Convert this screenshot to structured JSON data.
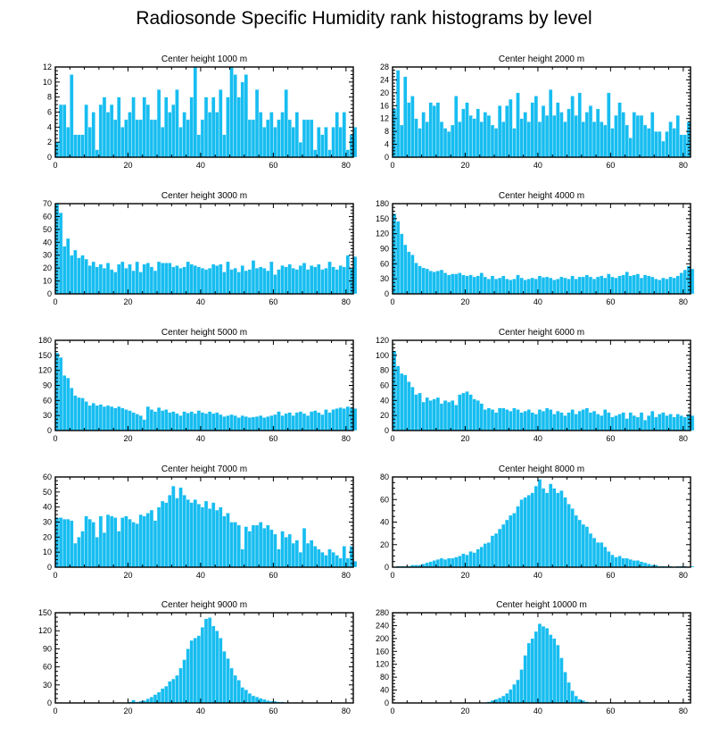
{
  "title": "Radiosonde Specific Humidity rank histograms by level",
  "colors": {
    "bar": "#17bdf0",
    "bar_edge": "#e9f8ff",
    "axis": "#000000"
  },
  "chart_data": [
    {
      "type": "bar",
      "title": "Center height 1000 m",
      "xlabel": "",
      "ylabel": "",
      "xlim": [
        0,
        82
      ],
      "xticks": [
        0,
        20,
        40,
        60,
        80
      ],
      "ylim": [
        0,
        12
      ],
      "yticks": [
        0,
        2,
        4,
        6,
        8,
        10,
        12
      ],
      "x_start": 0,
      "values": [
        2,
        7,
        7,
        4,
        11,
        3,
        3,
        3,
        7,
        4,
        6,
        1,
        7,
        8,
        6,
        7,
        5,
        8,
        4,
        5,
        6,
        8,
        5,
        5,
        8,
        7,
        5,
        5,
        9,
        4,
        8,
        6,
        7,
        9,
        4,
        6,
        5,
        8,
        12,
        3,
        5,
        8,
        6,
        8,
        6,
        9,
        3,
        8,
        12,
        11,
        8,
        10,
        11,
        5,
        5,
        9,
        6,
        4,
        5,
        6,
        4,
        5,
        6,
        9,
        5,
        4,
        6,
        2,
        5,
        5,
        5,
        1,
        4,
        3,
        4,
        1,
        4,
        6,
        4,
        6,
        1,
        3,
        4
      ]
    },
    {
      "type": "bar",
      "title": "Center height 2000 m",
      "xlabel": "",
      "ylabel": "",
      "xlim": [
        0,
        82
      ],
      "xticks": [
        0,
        20,
        40,
        60,
        80
      ],
      "ylim": [
        0,
        28
      ],
      "yticks": [
        0,
        4,
        8,
        12,
        16,
        20,
        24,
        28
      ],
      "x_start": 0,
      "values": [
        15,
        27,
        10,
        25,
        17,
        19,
        12,
        9,
        14,
        11,
        17,
        16,
        17,
        11,
        9,
        8,
        10,
        19,
        11,
        15,
        17,
        13,
        12,
        15,
        11,
        14,
        13,
        10,
        9,
        16,
        11,
        16,
        18,
        9,
        20,
        12,
        14,
        11,
        17,
        19,
        11,
        16,
        13,
        21,
        13,
        17,
        14,
        11,
        15,
        19,
        13,
        20,
        11,
        14,
        16,
        11,
        15,
        11,
        10,
        20,
        9,
        13,
        17,
        14,
        10,
        6,
        14,
        13,
        13,
        10,
        9,
        14,
        8,
        8,
        5,
        8,
        11,
        9,
        13,
        7,
        7,
        11
      ]
    },
    {
      "type": "bar",
      "title": "Center height 3000 m",
      "xlabel": "",
      "ylabel": "",
      "xlim": [
        0,
        82
      ],
      "xticks": [
        0,
        20,
        40,
        60,
        80
      ],
      "ylim": [
        0,
        70
      ],
      "yticks": [
        0,
        10,
        20,
        30,
        40,
        50,
        60,
        70
      ],
      "x_start": 0,
      "values": [
        70,
        63,
        37,
        43,
        30,
        34,
        28,
        30,
        27,
        22,
        25,
        21,
        23,
        20,
        24,
        19,
        17,
        23,
        25,
        20,
        23,
        18,
        25,
        17,
        23,
        24,
        21,
        18,
        25,
        24,
        24,
        24,
        21,
        22,
        20,
        21,
        25,
        23,
        22,
        21,
        20,
        19,
        20,
        23,
        22,
        23,
        17,
        25,
        19,
        20,
        17,
        22,
        18,
        19,
        26,
        20,
        21,
        20,
        18,
        25,
        15,
        19,
        22,
        21,
        23,
        20,
        19,
        22,
        24,
        19,
        22,
        21,
        23,
        19,
        20,
        25,
        21,
        19,
        22,
        21,
        30,
        20,
        29
      ]
    },
    {
      "type": "bar",
      "title": "Center height 4000 m",
      "xlabel": "",
      "ylabel": "",
      "xlim": [
        0,
        82
      ],
      "xticks": [
        0,
        20,
        40,
        60,
        80
      ],
      "ylim": [
        0,
        180
      ],
      "yticks": [
        0,
        30,
        60,
        90,
        120,
        150,
        180
      ],
      "x_start": 0,
      "values": [
        160,
        145,
        120,
        98,
        84,
        78,
        62,
        56,
        52,
        50,
        46,
        44,
        46,
        48,
        42,
        38,
        40,
        40,
        42,
        38,
        36,
        38,
        34,
        36,
        42,
        34,
        30,
        36,
        30,
        32,
        36,
        30,
        28,
        30,
        38,
        32,
        28,
        30,
        32,
        30,
        36,
        33,
        34,
        32,
        28,
        30,
        34,
        32,
        30,
        36,
        30,
        34,
        34,
        38,
        34,
        30,
        34,
        36,
        32,
        40,
        34,
        32,
        36,
        38,
        44,
        36,
        38,
        40,
        32,
        38,
        36,
        34,
        30,
        28,
        32,
        30,
        34,
        32,
        36,
        42,
        48,
        56,
        50
      ]
    },
    {
      "type": "bar",
      "title": "Center height 5000 m",
      "xlabel": "",
      "ylabel": "",
      "xlim": [
        0,
        82
      ],
      "xticks": [
        0,
        20,
        40,
        60,
        80
      ],
      "ylim": [
        0,
        180
      ],
      "yticks": [
        0,
        30,
        60,
        90,
        120,
        150,
        180
      ],
      "x_start": 0,
      "values": [
        155,
        146,
        110,
        105,
        85,
        70,
        66,
        65,
        58,
        50,
        55,
        50,
        52,
        48,
        50,
        48,
        45,
        48,
        45,
        42,
        40,
        36,
        33,
        30,
        22,
        48,
        42,
        38,
        46,
        40,
        42,
        36,
        38,
        34,
        30,
        38,
        35,
        38,
        34,
        40,
        36,
        34,
        38,
        34,
        36,
        32,
        28,
        30,
        32,
        30,
        26,
        30,
        28,
        26,
        27,
        28,
        30,
        26,
        28,
        30,
        32,
        38,
        30,
        34,
        36,
        30,
        36,
        38,
        34,
        30,
        38,
        40,
        36,
        32,
        42,
        36,
        42,
        44,
        46,
        44,
        48,
        46,
        44
      ]
    },
    {
      "type": "bar",
      "title": "Center height 6000 m",
      "xlabel": "",
      "ylabel": "",
      "xlim": [
        0,
        82
      ],
      "xticks": [
        0,
        20,
        40,
        60,
        80
      ],
      "ylim": [
        0,
        120
      ],
      "yticks": [
        0,
        20,
        40,
        60,
        80,
        100,
        120
      ],
      "x_start": 0,
      "values": [
        106,
        86,
        76,
        74,
        65,
        58,
        48,
        50,
        38,
        44,
        40,
        42,
        44,
        36,
        40,
        38,
        40,
        34,
        48,
        50,
        52,
        48,
        42,
        40,
        36,
        28,
        30,
        28,
        24,
        30,
        30,
        28,
        26,
        30,
        28,
        24,
        26,
        28,
        24,
        22,
        28,
        26,
        30,
        28,
        22,
        26,
        24,
        20,
        24,
        28,
        22,
        26,
        28,
        30,
        24,
        26,
        22,
        20,
        28,
        24,
        18,
        20,
        22,
        24,
        16,
        24,
        20,
        18,
        24,
        14,
        20,
        26,
        18,
        22,
        24,
        20,
        22,
        18,
        22,
        20,
        18,
        22,
        20
      ]
    },
    {
      "type": "bar",
      "title": "Center height 7000 m",
      "xlabel": "",
      "ylabel": "",
      "xlim": [
        0,
        82
      ],
      "xticks": [
        0,
        20,
        40,
        60,
        80
      ],
      "ylim": [
        0,
        60
      ],
      "yticks": [
        0,
        10,
        20,
        30,
        40,
        50,
        60
      ],
      "x_start": 0,
      "values": [
        33,
        33,
        32,
        32,
        31,
        16,
        20,
        24,
        34,
        32,
        30,
        20,
        34,
        23,
        35,
        34,
        33,
        24,
        33,
        34,
        32,
        30,
        29,
        35,
        34,
        36,
        38,
        31,
        40,
        44,
        43,
        48,
        54,
        46,
        53,
        48,
        45,
        43,
        45,
        42,
        40,
        44,
        39,
        43,
        38,
        40,
        34,
        36,
        30,
        30,
        28,
        12,
        27,
        24,
        28,
        28,
        30,
        26,
        28,
        25,
        22,
        12,
        24,
        20,
        22,
        16,
        18,
        10,
        26,
        16,
        18,
        14,
        12,
        10,
        8,
        12,
        10,
        8,
        6,
        14,
        6,
        14,
        4
      ]
    },
    {
      "type": "bar",
      "title": "Center height 8000 m",
      "xlabel": "",
      "ylabel": "",
      "xlim": [
        0,
        82
      ],
      "xticks": [
        0,
        20,
        40,
        60,
        80
      ],
      "ylim": [
        0,
        80
      ],
      "yticks": [
        0,
        20,
        40,
        60,
        80
      ],
      "x_start": 0,
      "values": [
        0,
        1,
        1,
        1,
        1,
        2,
        2,
        2,
        3,
        4,
        5,
        6,
        7,
        8,
        7,
        8,
        8,
        9,
        10,
        12,
        11,
        14,
        13,
        16,
        18,
        21,
        22,
        28,
        30,
        34,
        38,
        42,
        46,
        48,
        54,
        60,
        62,
        64,
        66,
        72,
        78,
        70,
        66,
        74,
        70,
        66,
        68,
        62,
        56,
        52,
        46,
        42,
        38,
        36,
        30,
        26,
        22,
        22,
        18,
        14,
        11,
        9,
        10,
        8,
        8,
        7,
        6,
        6,
        5,
        4,
        3,
        2,
        2,
        1,
        1,
        1,
        1,
        0,
        1,
        1,
        1,
        0,
        1
      ]
    },
    {
      "type": "bar",
      "title": "Center height 9000 m",
      "xlabel": "",
      "ylabel": "",
      "xlim": [
        0,
        82
      ],
      "xticks": [
        0,
        20,
        40,
        60,
        80
      ],
      "ylim": [
        0,
        150
      ],
      "yticks": [
        0,
        30,
        60,
        90,
        120,
        150
      ],
      "x_start": 0,
      "values": [
        0,
        0,
        0,
        0,
        0,
        0,
        0,
        0,
        0,
        0,
        0,
        0,
        0,
        0,
        0,
        0,
        0,
        0,
        1,
        0,
        2,
        5,
        2,
        3,
        4,
        7,
        10,
        14,
        18,
        24,
        28,
        36,
        40,
        46,
        58,
        72,
        90,
        104,
        108,
        112,
        126,
        140,
        142,
        128,
        120,
        108,
        86,
        74,
        58,
        46,
        38,
        26,
        22,
        16,
        12,
        10,
        8,
        6,
        4,
        3,
        3,
        2,
        2,
        1,
        1,
        1,
        1,
        0,
        1,
        0,
        0,
        0,
        0,
        0,
        0,
        0,
        0,
        0,
        0,
        0,
        0,
        0,
        0
      ]
    },
    {
      "type": "bar",
      "title": "Center height 10000 m",
      "xlabel": "",
      "ylabel": "",
      "xlim": [
        0,
        82
      ],
      "xticks": [
        0,
        20,
        40,
        60,
        80
      ],
      "ylim": [
        0,
        280
      ],
      "yticks": [
        0,
        40,
        80,
        120,
        160,
        200,
        240,
        280
      ],
      "x_start": 0,
      "values": [
        0,
        0,
        0,
        0,
        0,
        0,
        0,
        0,
        0,
        0,
        0,
        0,
        0,
        0,
        0,
        0,
        0,
        0,
        0,
        0,
        0,
        0,
        0,
        0,
        1,
        2,
        4,
        8,
        12,
        16,
        22,
        30,
        42,
        58,
        72,
        104,
        148,
        186,
        200,
        222,
        246,
        238,
        232,
        212,
        200,
        180,
        140,
        96,
        64,
        38,
        22,
        12,
        8,
        4,
        2,
        2,
        1,
        1,
        0,
        0,
        0,
        0,
        0,
        0,
        0,
        0,
        0,
        0,
        0,
        0,
        0,
        0,
        0,
        0,
        0,
        0,
        0,
        0,
        0,
        0,
        0,
        0,
        0
      ]
    }
  ]
}
